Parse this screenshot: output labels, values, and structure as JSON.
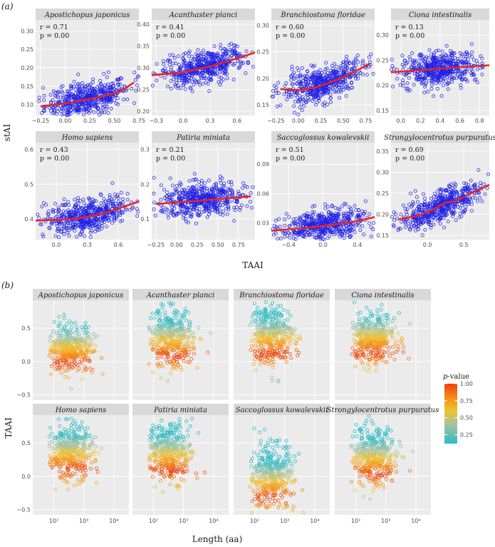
{
  "figure": {
    "panel_a_label": "(a)",
    "panel_b_label": "(b)"
  },
  "colors": {
    "panel_bg": "#ebebeb",
    "strip_bg": "#d9d9d9",
    "grid": "#ffffff",
    "points_a": "#1f1fe6",
    "fit_line": "#e8261e",
    "gradient": [
      "#29bcc6",
      "#9fc2a5",
      "#f0c233",
      "#f58a14",
      "#ef3d12"
    ]
  },
  "chart_data": [
    {
      "type": "scatter",
      "id": "a",
      "ylabel": "stAI",
      "xlabel": "TAAI",
      "facets": [
        {
          "species": "Apostichopus japonicus",
          "r": "r = 0.71",
          "p": "p = 0.00",
          "xlim": [
            -0.3,
            0.75
          ],
          "ylim": [
            0.07,
            0.33
          ],
          "xticks": [
            -0.25,
            0.0,
            0.25,
            0.5,
            0.75
          ],
          "xtick_labels": [
            "−0.25",
            "0.00",
            "0.25",
            "0.50",
            "0.75"
          ],
          "yticks": [
            0.1,
            0.15,
            0.2,
            0.25,
            0.3
          ],
          "ytick_labels": [
            "0.10",
            "0.15",
            "0.20",
            "0.25",
            "0.30"
          ],
          "fit": [
            [
              -0.25,
              0.095
            ],
            [
              0.0,
              0.103
            ],
            [
              0.25,
              0.115
            ],
            [
              0.5,
              0.13
            ],
            [
              0.6,
              0.142
            ],
            [
              0.7,
              0.16
            ]
          ]
        },
        {
          "species": "Acanthaster planci",
          "r": "r = 0.41",
          "p": "p = 0.00",
          "xlim": [
            -0.35,
            0.8
          ],
          "ylim": [
            0.19,
            0.41
          ],
          "xticks": [
            -0.3,
            0.0,
            0.3,
            0.6
          ],
          "xtick_labels": [
            "−0.3",
            "0.0",
            "0.3",
            "0.6"
          ],
          "yticks": [
            0.2,
            0.25,
            0.3,
            0.35,
            0.4
          ],
          "ytick_labels": [
            "0.20",
            "0.25",
            "0.30",
            "0.35",
            "0.40"
          ],
          "fit": [
            [
              -0.35,
              0.283
            ],
            [
              0.0,
              0.29
            ],
            [
              0.3,
              0.303
            ],
            [
              0.5,
              0.315
            ],
            [
              0.8,
              0.335
            ]
          ]
        },
        {
          "species": "Branchiostoma floridae",
          "r": "r = 0.60",
          "p": "p = 0.00",
          "xlim": [
            -0.3,
            0.85
          ],
          "ylim": [
            0.13,
            0.31
          ],
          "xticks": [
            -0.25,
            0.0,
            0.25,
            0.5,
            0.75
          ],
          "xtick_labels": [
            "−0.25",
            "0.00",
            "0.25",
            "0.50",
            "0.75"
          ],
          "yticks": [
            0.15,
            0.2,
            0.25,
            0.3
          ],
          "ytick_labels": [
            "0.15",
            "0.20",
            "0.25",
            "0.30"
          ],
          "fit": [
            [
              -0.2,
              0.18
            ],
            [
              0.0,
              0.178
            ],
            [
              0.2,
              0.183
            ],
            [
              0.4,
              0.195
            ],
            [
              0.6,
              0.21
            ],
            [
              0.8,
              0.228
            ]
          ]
        },
        {
          "species": "Ciona intestinalis",
          "r": "r = 0.13",
          "p": "p = 0.00",
          "xlim": [
            -0.1,
            0.9
          ],
          "ylim": [
            0.14,
            0.33
          ],
          "xticks": [
            0.0,
            0.2,
            0.4,
            0.6,
            0.8
          ],
          "xtick_labels": [
            "0.0",
            "0.2",
            "0.4",
            "0.6",
            "0.8"
          ],
          "yticks": [
            0.15,
            0.2,
            0.25,
            0.3
          ],
          "ytick_labels": [
            "0.15",
            "0.20",
            "0.25",
            "0.30"
          ],
          "fit": [
            [
              -0.1,
              0.226
            ],
            [
              0.2,
              0.23
            ],
            [
              0.5,
              0.235
            ],
            [
              0.9,
              0.24
            ]
          ]
        },
        {
          "species": "Homo sapiens",
          "r": "r = 0.43",
          "p": "p = 0.00",
          "xlim": [
            -0.2,
            0.8
          ],
          "ylim": [
            0.34,
            0.62
          ],
          "xticks": [
            0.0,
            0.3,
            0.6
          ],
          "xtick_labels": [
            "0.0",
            "0.3",
            "0.6"
          ],
          "yticks": [
            0.4,
            0.5,
            0.6
          ],
          "ytick_labels": [
            "0.4",
            "0.5",
            "0.6"
          ],
          "fit": [
            [
              -0.2,
              0.395
            ],
            [
              0.1,
              0.398
            ],
            [
              0.3,
              0.405
            ],
            [
              0.5,
              0.42
            ],
            [
              0.8,
              0.45
            ]
          ]
        },
        {
          "species": "Patiria miniata",
          "r": "r = 0.21",
          "p": "p = 0.00",
          "xlim": [
            -0.3,
            0.95
          ],
          "ylim": [
            0.04,
            0.32
          ],
          "xticks": [
            -0.25,
            0.0,
            0.25,
            0.5,
            0.75
          ],
          "xtick_labels": [
            "−0.25",
            "0.00",
            "0.25",
            "0.50",
            "0.75"
          ],
          "yticks": [
            0.1,
            0.2,
            0.3
          ],
          "ytick_labels": [
            "0.1",
            "0.2",
            "0.3"
          ],
          "fit": [
            [
              -0.25,
              0.143
            ],
            [
              0.25,
              0.152
            ],
            [
              0.5,
              0.157
            ],
            [
              0.9,
              0.165
            ]
          ]
        },
        {
          "species": "Saccoglossus kowalevskii",
          "r": "r = 0.51",
          "p": "p = 0.00",
          "xlim": [
            -0.6,
            0.6
          ],
          "ylim": [
            0.013,
            0.112
          ],
          "xticks": [
            -0.4,
            0.0,
            0.4
          ],
          "xtick_labels": [
            "−0.4",
            "0.0",
            "0.4"
          ],
          "yticks": [
            0.03,
            0.06,
            0.09
          ],
          "ytick_labels": [
            "0.03",
            "0.06",
            "0.09"
          ],
          "fit": [
            [
              -0.6,
              0.022
            ],
            [
              -0.2,
              0.025
            ],
            [
              0.1,
              0.028
            ],
            [
              0.4,
              0.032
            ],
            [
              0.6,
              0.036
            ]
          ]
        },
        {
          "species": "Strongylocentrotus purpuratus",
          "r": "r = 0.69",
          "p": "p = 0.00",
          "xlim": [
            -0.5,
            0.85
          ],
          "ylim": [
            0.14,
            0.37
          ],
          "xticks": [
            0.0,
            0.5
          ],
          "xtick_labels": [
            "0.0",
            "0.5"
          ],
          "yticks": [
            0.15,
            0.2,
            0.25,
            0.3,
            0.35
          ],
          "ytick_labels": [
            "0.15",
            "0.20",
            "0.25",
            "0.30",
            "0.35"
          ],
          "fit": [
            [
              -0.4,
              0.188
            ],
            [
              -0.1,
              0.198
            ],
            [
              0.1,
              0.213
            ],
            [
              0.25,
              0.228
            ],
            [
              0.4,
              0.232
            ],
            [
              0.6,
              0.25
            ],
            [
              0.85,
              0.27
            ]
          ]
        }
      ]
    },
    {
      "type": "scatter",
      "id": "b",
      "ylabel": "TAAI",
      "xlabel": "Length (aa)",
      "legend": {
        "title": "p-value",
        "ticks": [
          "1.00",
          "0.75",
          "0.50",
          "0.25"
        ],
        "tick_values": [
          1.0,
          0.75,
          0.5,
          0.25
        ],
        "position": "right"
      },
      "xscale": "log10",
      "xlim_log10": [
        1.3,
        4.5
      ],
      "ylim": [
        -0.58,
        0.92
      ],
      "xticks_log10": [
        2,
        3,
        4
      ],
      "xtick_labels": [
        "10²",
        "10³",
        "10⁴"
      ],
      "yticks": [
        -0.5,
        0.0,
        0.5
      ],
      "ytick_labels": [
        "−0.5",
        "0.0",
        "0.5"
      ],
      "facets": [
        {
          "species": "Apostichopus japonicus",
          "center": 0.2,
          "spread": 0.2
        },
        {
          "species": "Acanthaster planci",
          "center": 0.35,
          "spread": 0.24
        },
        {
          "species": "Branchiostoma floridae",
          "center": 0.4,
          "spread": 0.25
        },
        {
          "species": "Ciona intestinalis",
          "center": 0.35,
          "spread": 0.2
        },
        {
          "species": "Homo sapiens",
          "center": 0.35,
          "spread": 0.22
        },
        {
          "species": "Patiria miniata",
          "center": 0.35,
          "spread": 0.24
        },
        {
          "species": "Saccoglossus kowalevskii",
          "center": 0.0,
          "spread": 0.28
        },
        {
          "species": "Strongylocentrotus purpuratus",
          "center": 0.3,
          "spread": 0.24
        }
      ]
    }
  ]
}
